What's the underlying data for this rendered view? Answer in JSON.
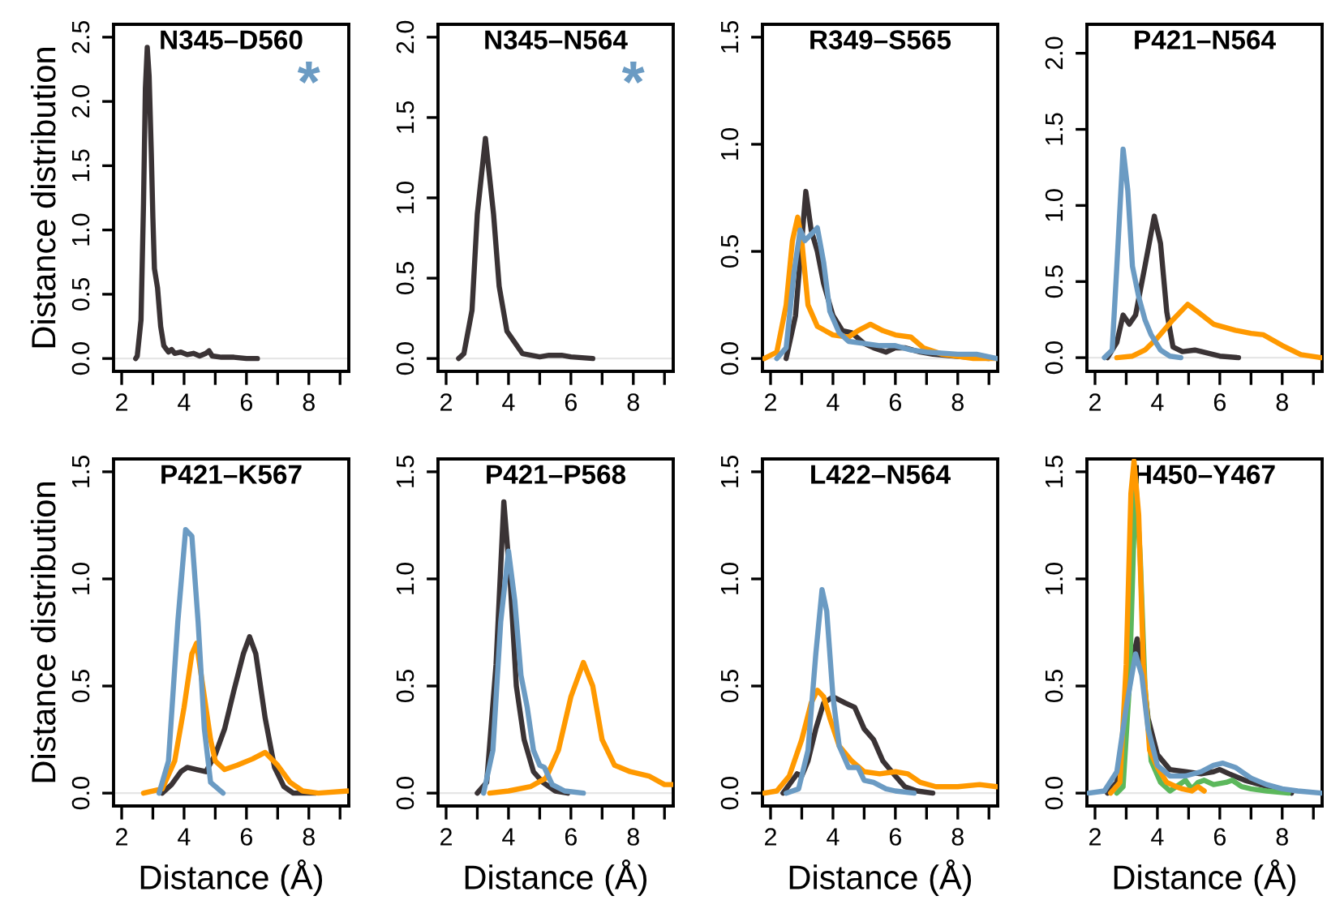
{
  "chart_data": [
    {
      "type": "line",
      "title": "N345–D560",
      "ylabel": "Distance distribution",
      "xlim": [
        1.74,
        9.28
      ],
      "ylim": [
        -0.1,
        2.6
      ],
      "xticks": [
        2,
        {
          "value": 3,
          "label": null
        },
        4,
        {
          "value": 5,
          "label": null
        },
        6,
        {
          "value": 7,
          "label": null
        },
        8,
        {
          "value": 9,
          "label": null
        }
      ],
      "yticks": [
        {
          "value": 0,
          "label": "0.0"
        },
        {
          "value": 0.5,
          "label": "0.5"
        },
        {
          "value": 1,
          "label": "1.0"
        },
        {
          "value": 1.5,
          "label": "1.5"
        },
        {
          "value": 2,
          "label": "2.0"
        },
        {
          "value": 2.5,
          "label": "2.5"
        }
      ],
      "ref_lines": [
        {
          "axis": "y",
          "value": 0,
          "color": "#e6e6e6"
        }
      ],
      "annotations": [
        "*"
      ],
      "series": [
        {
          "color": "#3a3335",
          "x": [
            2.45,
            2.5,
            2.62,
            2.7,
            2.76,
            2.82,
            2.88,
            2.95,
            3.0,
            3.05,
            3.15,
            3.25,
            3.35,
            3.5,
            3.6,
            3.7,
            3.9,
            4.1,
            4.3,
            4.5,
            4.7,
            4.8,
            4.9,
            5.2,
            5.6,
            6.0,
            6.35
          ],
          "values": [
            0,
            0.02,
            0.3,
            1.2,
            2.1,
            2.42,
            2.2,
            1.6,
            1.1,
            0.7,
            0.55,
            0.25,
            0.1,
            0.05,
            0.07,
            0.04,
            0.05,
            0.03,
            0.04,
            0.02,
            0.04,
            0.06,
            0.02,
            0.01,
            0.01,
            0,
            0
          ]
        }
      ]
    },
    {
      "type": "line",
      "title": "N345–N564",
      "xlim": [
        1.74,
        9.28
      ],
      "ylim": [
        -0.08,
        2.08
      ],
      "xticks": [
        2,
        {
          "value": 3,
          "label": null
        },
        4,
        {
          "value": 5,
          "label": null
        },
        6,
        {
          "value": 7,
          "label": null
        },
        8,
        {
          "value": 9,
          "label": null
        }
      ],
      "yticks": [
        {
          "value": 0,
          "label": "0.0"
        },
        {
          "value": 0.5,
          "label": "0.5"
        },
        {
          "value": 1,
          "label": "1.0"
        },
        {
          "value": 1.5,
          "label": "1.5"
        },
        {
          "value": 2,
          "label": "2.0"
        }
      ],
      "ref_lines": [
        {
          "axis": "y",
          "value": 0,
          "color": "#e6e6e6"
        }
      ],
      "annotations": [
        "*"
      ],
      "series": [
        {
          "color": "#3a3335",
          "x": [
            2.4,
            2.57,
            2.83,
            3.0,
            3.26,
            3.52,
            3.7,
            3.95,
            4.2,
            4.45,
            5.0,
            5.3,
            5.7,
            6.0,
            6.7
          ],
          "values": [
            0,
            0.03,
            0.3,
            0.9,
            1.37,
            0.9,
            0.45,
            0.17,
            0.1,
            0.03,
            0.01,
            0.02,
            0.02,
            0.01,
            0
          ]
        }
      ]
    },
    {
      "type": "line",
      "title": "R349–S565",
      "xlim": [
        1.74,
        9.28
      ],
      "ylim": [
        -0.06,
        1.56
      ],
      "xticks": [
        2,
        {
          "value": 3,
          "label": null
        },
        4,
        {
          "value": 5,
          "label": null
        },
        6,
        {
          "value": 7,
          "label": null
        },
        8,
        {
          "value": 9,
          "label": null
        }
      ],
      "yticks": [
        {
          "value": 0,
          "label": "0.0"
        },
        {
          "value": 0.5,
          "label": "0.5"
        },
        {
          "value": 1,
          "label": "1.0"
        },
        {
          "value": 1.5,
          "label": "1.5"
        }
      ],
      "ref_lines": [
        {
          "axis": "y",
          "value": 0,
          "color": "#e6e6e6"
        }
      ],
      "series": [
        {
          "color": "#3a3335",
          "x": [
            2.5,
            2.8,
            3.0,
            3.13,
            3.3,
            3.5,
            3.7,
            4.0,
            4.3,
            4.6,
            5.0,
            5.3,
            5.7,
            6.0,
            6.3,
            6.8,
            7.2,
            8.0,
            9.0
          ],
          "values": [
            0,
            0.2,
            0.55,
            0.78,
            0.6,
            0.5,
            0.35,
            0.2,
            0.13,
            0.12,
            0.07,
            0.05,
            0.03,
            0.05,
            0.05,
            0.03,
            0.02,
            0.01,
            0
          ]
        },
        {
          "color": "#ff9900",
          "x": [
            1.8,
            2.2,
            2.5,
            2.7,
            2.87,
            3.0,
            3.2,
            3.5,
            4.0,
            4.5,
            4.8,
            5.2,
            5.6,
            6.0,
            6.5,
            6.9,
            7.5,
            8.5,
            9.25
          ],
          "values": [
            0,
            0.03,
            0.25,
            0.55,
            0.66,
            0.55,
            0.25,
            0.15,
            0.11,
            0.1,
            0.13,
            0.16,
            0.13,
            0.11,
            0.1,
            0.05,
            0.02,
            0,
            0
          ]
        },
        {
          "color": "#6b9bc3",
          "x": [
            2.2,
            2.5,
            2.75,
            2.95,
            3.1,
            3.3,
            3.5,
            3.7,
            3.9,
            4.2,
            4.5,
            5.0,
            5.5,
            6.0,
            6.5,
            7.0,
            8.0,
            8.6,
            9.25
          ],
          "values": [
            0,
            0.05,
            0.4,
            0.6,
            0.55,
            0.58,
            0.61,
            0.45,
            0.22,
            0.12,
            0.08,
            0.07,
            0.06,
            0.06,
            0.04,
            0.03,
            0.02,
            0.02,
            0
          ]
        }
      ]
    },
    {
      "type": "line",
      "title": "P421–N564",
      "xlim": [
        1.74,
        9.28
      ],
      "ylim": [
        -0.09,
        2.19
      ],
      "xticks": [
        2,
        {
          "value": 3,
          "label": null
        },
        4,
        {
          "value": 5,
          "label": null
        },
        6,
        {
          "value": 7,
          "label": null
        },
        8,
        {
          "value": 9,
          "label": null
        }
      ],
      "yticks": [
        {
          "value": 0,
          "label": "0.0"
        },
        {
          "value": 0.5,
          "label": "0.5"
        },
        {
          "value": 1,
          "label": "1.0"
        },
        {
          "value": 1.5,
          "label": "1.5"
        },
        {
          "value": 2,
          "label": "2.0"
        }
      ],
      "ref_lines": [
        {
          "axis": "y",
          "value": 0,
          "color": "#e6e6e6"
        }
      ],
      "series": [
        {
          "color": "#3a3335",
          "x": [
            2.4,
            2.7,
            2.9,
            3.1,
            3.3,
            3.6,
            3.9,
            4.1,
            4.3,
            4.5,
            4.8,
            5.2,
            5.6,
            6.0,
            6.6
          ],
          "values": [
            0,
            0.1,
            0.28,
            0.22,
            0.28,
            0.6,
            0.93,
            0.75,
            0.3,
            0.07,
            0.04,
            0.05,
            0.03,
            0.01,
            0
          ]
        },
        {
          "color": "#ff9900",
          "x": [
            2.7,
            3.2,
            3.6,
            4.0,
            4.5,
            4.97,
            5.3,
            5.8,
            6.5,
            7.0,
            7.4,
            8.0,
            8.6,
            9.25
          ],
          "values": [
            0,
            0.01,
            0.05,
            0.13,
            0.25,
            0.35,
            0.3,
            0.22,
            0.18,
            0.16,
            0.15,
            0.08,
            0.02,
            0
          ]
        },
        {
          "color": "#6b9bc3",
          "x": [
            2.3,
            2.55,
            2.7,
            2.9,
            3.05,
            3.2,
            3.4,
            3.6,
            3.8,
            4.1,
            4.4,
            4.75
          ],
          "values": [
            0,
            0.05,
            0.6,
            1.37,
            1.1,
            0.6,
            0.4,
            0.25,
            0.15,
            0.05,
            0.01,
            0
          ]
        }
      ]
    },
    {
      "type": "line",
      "title": "P421–K567",
      "xlabel": "Distance (Å)",
      "ylabel": "Distance distribution",
      "xlim": [
        1.74,
        9.28
      ],
      "ylim": [
        -0.06,
        1.56
      ],
      "xticks": [
        2,
        {
          "value": 3,
          "label": null
        },
        4,
        {
          "value": 5,
          "label": null
        },
        6,
        {
          "value": 7,
          "label": null
        },
        8,
        {
          "value": 9,
          "label": null
        }
      ],
      "yticks": [
        {
          "value": 0,
          "label": "0.0"
        },
        {
          "value": 0.5,
          "label": "0.5"
        },
        {
          "value": 1,
          "label": "1.0"
        },
        {
          "value": 1.5,
          "label": "1.5"
        }
      ],
      "ref_lines": [
        {
          "axis": "y",
          "value": 0,
          "color": "#e6e6e6"
        }
      ],
      "series": [
        {
          "color": "#3a3335",
          "x": [
            3.3,
            3.6,
            3.9,
            4.1,
            4.4,
            4.7,
            5.0,
            5.3,
            5.6,
            5.9,
            6.1,
            6.3,
            6.6,
            6.9,
            7.2,
            7.5,
            8.2
          ],
          "values": [
            0,
            0.04,
            0.1,
            0.12,
            0.11,
            0.1,
            0.18,
            0.3,
            0.48,
            0.65,
            0.73,
            0.65,
            0.35,
            0.12,
            0.03,
            0,
            0
          ]
        },
        {
          "color": "#ff9900",
          "x": [
            2.7,
            3.3,
            3.7,
            4.0,
            4.25,
            4.4,
            4.6,
            4.85,
            5.0,
            5.3,
            5.7,
            6.2,
            6.6,
            7.0,
            7.4,
            7.8,
            8.3,
            9.25
          ],
          "values": [
            0,
            0.02,
            0.15,
            0.4,
            0.65,
            0.7,
            0.5,
            0.25,
            0.15,
            0.11,
            0.13,
            0.16,
            0.19,
            0.13,
            0.05,
            0.01,
            0,
            0.01
          ]
        },
        {
          "color": "#6b9bc3",
          "x": [
            3.2,
            3.5,
            3.8,
            4.05,
            4.25,
            4.45,
            4.65,
            4.85,
            5.25
          ],
          "values": [
            0,
            0.15,
            0.8,
            1.23,
            1.2,
            0.8,
            0.3,
            0.05,
            0
          ]
        }
      ]
    },
    {
      "type": "line",
      "title": "P421–P568",
      "xlabel": "Distance (Å)",
      "xlim": [
        1.74,
        9.28
      ],
      "ylim": [
        -0.06,
        1.56
      ],
      "xticks": [
        2,
        {
          "value": 3,
          "label": null
        },
        4,
        {
          "value": 5,
          "label": null
        },
        6,
        {
          "value": 7,
          "label": null
        },
        8,
        {
          "value": 9,
          "label": null
        }
      ],
      "yticks": [
        {
          "value": 0,
          "label": "0.0"
        },
        {
          "value": 0.5,
          "label": "0.5"
        },
        {
          "value": 1,
          "label": "1.0"
        },
        {
          "value": 1.5,
          "label": "1.5"
        }
      ],
      "ref_lines": [
        {
          "axis": "y",
          "value": 0,
          "color": "#e6e6e6"
        }
      ],
      "series": [
        {
          "color": "#3a3335",
          "x": [
            3.0,
            3.3,
            3.6,
            3.85,
            4.05,
            4.25,
            4.5,
            4.8,
            5.1,
            5.5,
            5.9
          ],
          "values": [
            0,
            0.05,
            0.6,
            1.36,
            1.0,
            0.5,
            0.25,
            0.1,
            0.05,
            0.01,
            0
          ]
        },
        {
          "color": "#ff9900",
          "x": [
            3.4,
            4.0,
            4.7,
            5.2,
            5.6,
            6.0,
            6.4,
            6.7,
            7.0,
            7.4,
            7.9,
            8.5,
            9.0,
            9.25
          ],
          "values": [
            0,
            0.01,
            0.03,
            0.07,
            0.2,
            0.45,
            0.61,
            0.5,
            0.25,
            0.13,
            0.1,
            0.08,
            0.04,
            0.04
          ]
        },
        {
          "color": "#6b9bc3",
          "x": [
            3.2,
            3.5,
            3.75,
            4.0,
            4.2,
            4.4,
            4.6,
            4.8,
            5.0,
            5.15,
            5.4,
            5.8,
            6.4
          ],
          "values": [
            0,
            0.2,
            0.8,
            1.13,
            0.9,
            0.55,
            0.4,
            0.2,
            0.13,
            0.12,
            0.04,
            0.01,
            0
          ]
        }
      ]
    },
    {
      "type": "line",
      "title": "L422–N564",
      "xlabel": "Distance (Å)",
      "xlim": [
        1.74,
        9.28
      ],
      "ylim": [
        -0.06,
        1.56
      ],
      "xticks": [
        2,
        {
          "value": 3,
          "label": null
        },
        4,
        {
          "value": 5,
          "label": null
        },
        6,
        {
          "value": 7,
          "label": null
        },
        8,
        {
          "value": 9,
          "label": null
        }
      ],
      "yticks": [
        {
          "value": 0,
          "label": "0.0"
        },
        {
          "value": 0.5,
          "label": "0.5"
        },
        {
          "value": 1,
          "label": "1.0"
        },
        {
          "value": 1.5,
          "label": "1.5"
        }
      ],
      "ref_lines": [
        {
          "axis": "y",
          "value": 0,
          "color": "#e6e6e6"
        }
      ],
      "series": [
        {
          "color": "#3a3335",
          "x": [
            2.4,
            2.6,
            2.85,
            3.0,
            3.2,
            3.45,
            3.7,
            4.0,
            4.4,
            4.7,
            5.0,
            5.3,
            5.6,
            6.0,
            6.3,
            6.7,
            7.2
          ],
          "values": [
            0,
            0.04,
            0.09,
            0.08,
            0.15,
            0.3,
            0.42,
            0.45,
            0.42,
            0.4,
            0.3,
            0.25,
            0.15,
            0.08,
            0.03,
            0.01,
            0
          ]
        },
        {
          "color": "#ff9900",
          "x": [
            1.8,
            2.2,
            2.6,
            3.0,
            3.3,
            3.5,
            3.7,
            3.9,
            4.2,
            4.6,
            5.0,
            5.5,
            6.0,
            6.4,
            6.8,
            7.3,
            8.0,
            8.7,
            9.25
          ],
          "values": [
            0,
            0.01,
            0.08,
            0.25,
            0.42,
            0.48,
            0.45,
            0.35,
            0.22,
            0.15,
            0.1,
            0.09,
            0.1,
            0.09,
            0.05,
            0.03,
            0.03,
            0.04,
            0.03
          ]
        },
        {
          "color": "#6b9bc3",
          "x": [
            2.5,
            2.9,
            3.2,
            3.45,
            3.65,
            3.8,
            4.0,
            4.2,
            4.5,
            4.8,
            5.0,
            5.3,
            5.7,
            6.0,
            6.6
          ],
          "values": [
            0,
            0.02,
            0.2,
            0.65,
            0.95,
            0.85,
            0.45,
            0.22,
            0.12,
            0.12,
            0.06,
            0.05,
            0.02,
            0.01,
            0
          ]
        }
      ]
    },
    {
      "type": "line",
      "title": "H450–Y467",
      "xlabel": "Distance (Å)",
      "xlim": [
        1.74,
        9.28
      ],
      "ylim": [
        -0.06,
        1.56
      ],
      "xticks": [
        2,
        {
          "value": 3,
          "label": null
        },
        4,
        {
          "value": 5,
          "label": null
        },
        6,
        {
          "value": 7,
          "label": null
        },
        8,
        {
          "value": 9,
          "label": null
        }
      ],
      "yticks": [
        {
          "value": 0,
          "label": "0.0"
        },
        {
          "value": 0.5,
          "label": "0.5"
        },
        {
          "value": 1,
          "label": "1.0"
        },
        {
          "value": 1.5,
          "label": "1.5"
        }
      ],
      "ref_lines": [
        {
          "axis": "y",
          "value": 0,
          "color": "#e6e6e6"
        }
      ],
      "series": [
        {
          "color": "#3a3335",
          "x": [
            2.4,
            2.7,
            2.9,
            3.1,
            3.35,
            3.5,
            3.7,
            4.0,
            4.4,
            4.9,
            5.4,
            5.8,
            6.0,
            6.3,
            6.8,
            7.3,
            7.8,
            8.3
          ],
          "values": [
            0,
            0.05,
            0.2,
            0.55,
            0.72,
            0.6,
            0.35,
            0.18,
            0.11,
            0.1,
            0.09,
            0.1,
            0.11,
            0.09,
            0.06,
            0.04,
            0.02,
            0
          ]
        },
        {
          "color": "#5cb85c",
          "x": [
            2.7,
            2.9,
            3.1,
            3.3,
            3.45,
            3.6,
            3.8,
            4.1,
            4.4,
            4.7,
            4.9,
            5.1,
            5.3,
            5.5,
            5.8,
            6.2,
            6.4,
            6.7,
            7.0,
            7.5,
            8.2
          ],
          "values": [
            0,
            0.03,
            0.5,
            1.47,
            1.1,
            0.5,
            0.15,
            0.05,
            0.01,
            0.04,
            0.06,
            0.02,
            0.05,
            0.06,
            0.04,
            0.05,
            0.06,
            0.03,
            0.02,
            0.01,
            0
          ]
        },
        {
          "color": "#ff9900",
          "x": [
            2.5,
            2.8,
            3.0,
            3.15,
            3.25,
            3.4,
            3.55,
            3.75,
            4.0,
            4.3,
            4.6,
            4.8,
            5.1,
            5.3,
            5.5
          ],
          "values": [
            0,
            0.05,
            0.6,
            1.4,
            1.55,
            1.3,
            0.6,
            0.2,
            0.12,
            0.05,
            0.03,
            0.02,
            0.01,
            0.03,
            0.01
          ]
        },
        {
          "color": "#6b9bc3",
          "x": [
            1.8,
            2.3,
            2.7,
            3.0,
            3.3,
            3.5,
            3.7,
            4.0,
            4.4,
            4.9,
            5.4,
            5.8,
            6.1,
            6.5,
            7.0,
            7.5,
            8.0,
            8.5,
            9.25
          ],
          "values": [
            0,
            0.01,
            0.1,
            0.4,
            0.65,
            0.55,
            0.3,
            0.13,
            0.08,
            0.08,
            0.1,
            0.13,
            0.14,
            0.12,
            0.07,
            0.04,
            0.02,
            0.01,
            0
          ]
        }
      ]
    }
  ]
}
